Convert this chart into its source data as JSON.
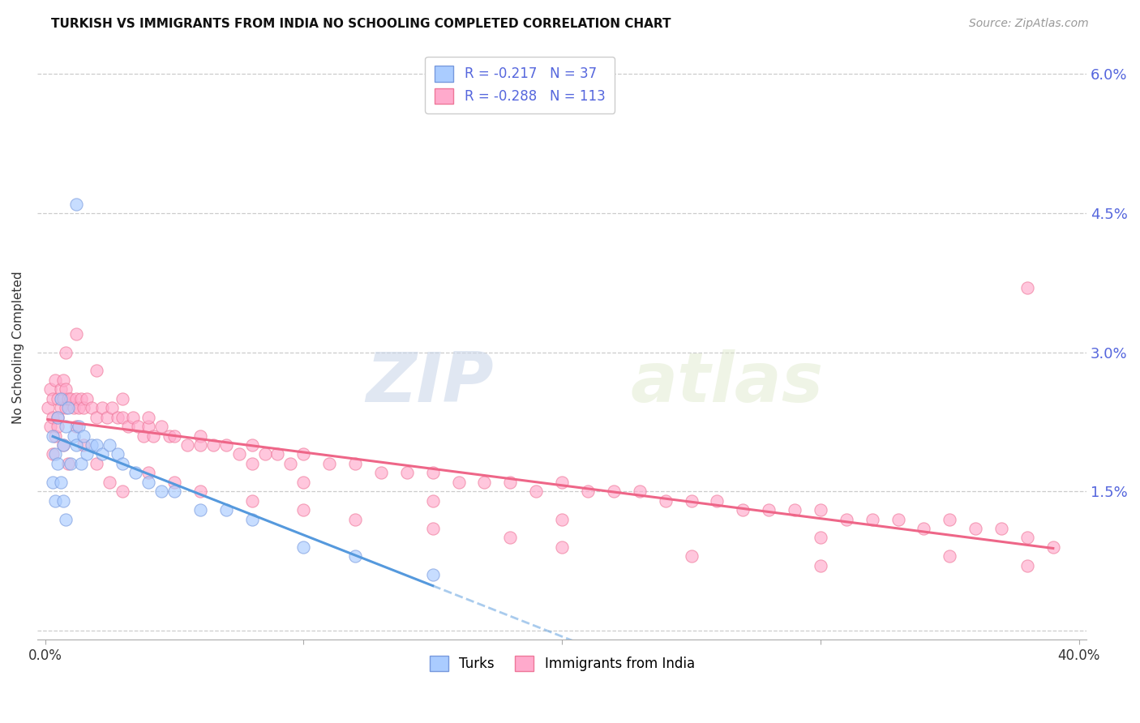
{
  "title": "TURKISH VS IMMIGRANTS FROM INDIA NO SCHOOLING COMPLETED CORRELATION CHART",
  "source": "Source: ZipAtlas.com",
  "ylabel": "No Schooling Completed",
  "xlim": [
    0.0,
    0.4
  ],
  "ylim": [
    0.0,
    0.06
  ],
  "yticks": [
    0.0,
    0.015,
    0.03,
    0.045,
    0.06
  ],
  "yticklabels_right": [
    "",
    "1.5%",
    "3.0%",
    "4.5%",
    "6.0%"
  ],
  "xtick_first": "0.0%",
  "xtick_last": "40.0%",
  "right_ytick_color": "#5566dd",
  "grid_color": "#cccccc",
  "background_color": "#ffffff",
  "turks_color": "#aaccff",
  "turks_edge_color": "#7799dd",
  "india_color": "#ffaacc",
  "india_edge_color": "#ee7799",
  "turks_line_color": "#5599dd",
  "india_line_color": "#ee6688",
  "turks_R": -0.217,
  "turks_N": 37,
  "india_R": -0.288,
  "india_N": 113,
  "legend_label_turks": "Turks",
  "legend_label_india": "Immigrants from India",
  "watermark_zip": "ZIP",
  "watermark_atlas": "atlas",
  "title_fontsize": 11,
  "source_fontsize": 10,
  "legend_fontsize": 12,
  "ylabel_fontsize": 11,
  "scatter_size": 120,
  "scatter_alpha": 0.65,
  "turks_x": [
    0.003,
    0.004,
    0.005,
    0.006,
    0.007,
    0.008,
    0.009,
    0.01,
    0.011,
    0.012,
    0.013,
    0.014,
    0.015,
    0.016,
    0.018,
    0.02,
    0.022,
    0.025,
    0.028,
    0.03,
    0.035,
    0.04,
    0.045,
    0.05,
    0.06,
    0.07,
    0.08,
    0.1,
    0.12,
    0.15,
    0.003,
    0.004,
    0.005,
    0.006,
    0.007,
    0.008,
    0.012
  ],
  "turks_y": [
    0.021,
    0.019,
    0.023,
    0.025,
    0.02,
    0.022,
    0.024,
    0.018,
    0.021,
    0.02,
    0.022,
    0.018,
    0.021,
    0.019,
    0.02,
    0.02,
    0.019,
    0.02,
    0.019,
    0.018,
    0.017,
    0.016,
    0.015,
    0.015,
    0.013,
    0.013,
    0.012,
    0.009,
    0.008,
    0.006,
    0.016,
    0.014,
    0.018,
    0.016,
    0.014,
    0.012,
    0.046
  ],
  "india_x": [
    0.001,
    0.002,
    0.002,
    0.003,
    0.003,
    0.004,
    0.004,
    0.005,
    0.005,
    0.006,
    0.006,
    0.007,
    0.007,
    0.008,
    0.008,
    0.009,
    0.01,
    0.011,
    0.012,
    0.013,
    0.014,
    0.015,
    0.016,
    0.018,
    0.02,
    0.022,
    0.024,
    0.026,
    0.028,
    0.03,
    0.032,
    0.034,
    0.036,
    0.038,
    0.04,
    0.042,
    0.045,
    0.048,
    0.05,
    0.055,
    0.06,
    0.065,
    0.07,
    0.075,
    0.08,
    0.085,
    0.09,
    0.095,
    0.1,
    0.11,
    0.12,
    0.13,
    0.14,
    0.15,
    0.16,
    0.17,
    0.18,
    0.19,
    0.2,
    0.21,
    0.22,
    0.23,
    0.24,
    0.25,
    0.26,
    0.27,
    0.28,
    0.29,
    0.3,
    0.31,
    0.32,
    0.33,
    0.34,
    0.35,
    0.36,
    0.37,
    0.38,
    0.39,
    0.003,
    0.005,
    0.007,
    0.009,
    0.012,
    0.015,
    0.02,
    0.025,
    0.03,
    0.04,
    0.05,
    0.06,
    0.08,
    0.1,
    0.12,
    0.15,
    0.18,
    0.2,
    0.25,
    0.3,
    0.35,
    0.38,
    0.008,
    0.012,
    0.02,
    0.03,
    0.04,
    0.06,
    0.08,
    0.1,
    0.15,
    0.2,
    0.3,
    0.38
  ],
  "india_y": [
    0.024,
    0.026,
    0.022,
    0.025,
    0.023,
    0.027,
    0.021,
    0.025,
    0.023,
    0.026,
    0.024,
    0.027,
    0.025,
    0.026,
    0.024,
    0.025,
    0.025,
    0.024,
    0.025,
    0.024,
    0.025,
    0.024,
    0.025,
    0.024,
    0.023,
    0.024,
    0.023,
    0.024,
    0.023,
    0.023,
    0.022,
    0.023,
    0.022,
    0.021,
    0.022,
    0.021,
    0.022,
    0.021,
    0.021,
    0.02,
    0.021,
    0.02,
    0.02,
    0.019,
    0.02,
    0.019,
    0.019,
    0.018,
    0.019,
    0.018,
    0.018,
    0.017,
    0.017,
    0.017,
    0.016,
    0.016,
    0.016,
    0.015,
    0.016,
    0.015,
    0.015,
    0.015,
    0.014,
    0.014,
    0.014,
    0.013,
    0.013,
    0.013,
    0.013,
    0.012,
    0.012,
    0.012,
    0.011,
    0.012,
    0.011,
    0.011,
    0.01,
    0.009,
    0.019,
    0.022,
    0.02,
    0.018,
    0.022,
    0.02,
    0.018,
    0.016,
    0.015,
    0.017,
    0.016,
    0.015,
    0.014,
    0.013,
    0.012,
    0.011,
    0.01,
    0.009,
    0.008,
    0.007,
    0.008,
    0.007,
    0.03,
    0.032,
    0.028,
    0.025,
    0.023,
    0.02,
    0.018,
    0.016,
    0.014,
    0.012,
    0.01,
    0.037
  ]
}
